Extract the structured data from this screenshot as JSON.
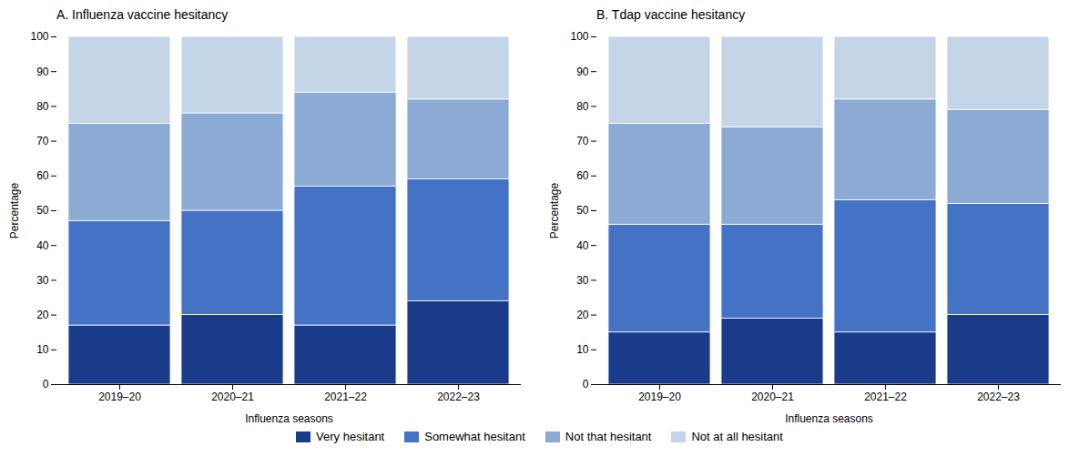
{
  "chart_data": [
    {
      "type": "bar",
      "stacked": true,
      "title": "A. Influenza vaccine hesitancy",
      "categories": [
        "2019–20",
        "2020–21",
        "2021–22",
        "2022–23"
      ],
      "series": [
        {
          "name": "Very hesitant",
          "color": "#1a3a8a",
          "values": [
            17,
            20,
            17,
            24
          ]
        },
        {
          "name": "Somewhat hesitant",
          "color": "#4472c4",
          "values": [
            30,
            30,
            40,
            35
          ]
        },
        {
          "name": "Not that hesitant",
          "color": "#8baad4",
          "values": [
            28,
            28,
            27,
            23
          ]
        },
        {
          "name": "Not at all hesitant",
          "color": "#c5d5e8",
          "values": [
            25,
            22,
            16,
            18
          ]
        }
      ],
      "xlabel": "Influenza seasons",
      "ylabel": "Percentage",
      "ylim": [
        0,
        100
      ],
      "yticks": [
        0,
        10,
        20,
        30,
        40,
        50,
        60,
        70,
        80,
        90,
        100
      ],
      "grid": false,
      "legend": "bottom"
    },
    {
      "type": "bar",
      "stacked": true,
      "title": "B. Tdap vaccine hesitancy",
      "categories": [
        "2019–20",
        "2020–21",
        "2021–22",
        "2022–23"
      ],
      "series": [
        {
          "name": "Very hesitant",
          "color": "#1a3a8a",
          "values": [
            15,
            19,
            15,
            20
          ]
        },
        {
          "name": "Somewhat hesitant",
          "color": "#4472c4",
          "values": [
            31,
            27,
            38,
            32
          ]
        },
        {
          "name": "Not that hesitant",
          "color": "#8baad4",
          "values": [
            29,
            28,
            29,
            27
          ]
        },
        {
          "name": "Not at all hesitant",
          "color": "#c5d5e8",
          "values": [
            25,
            26,
            18,
            21
          ]
        }
      ],
      "xlabel": "Influenza seasons",
      "ylabel": "Percentage",
      "ylim": [
        0,
        100
      ],
      "yticks": [
        0,
        10,
        20,
        30,
        40,
        50,
        60,
        70,
        80,
        90,
        100
      ],
      "grid": false,
      "legend": "bottom"
    }
  ]
}
